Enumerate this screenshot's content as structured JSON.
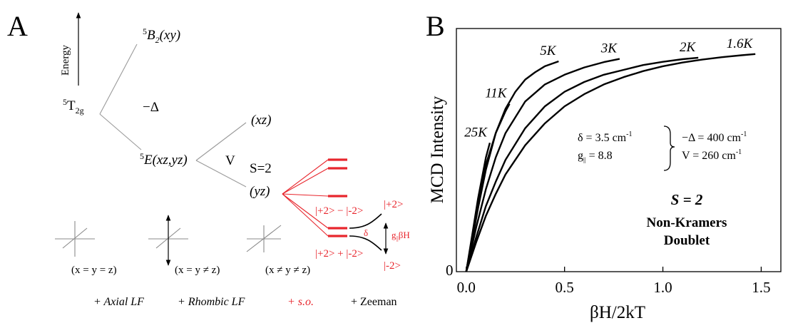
{
  "panel_a": {
    "label": "A",
    "energy_axis_label": "Energy",
    "levels": {
      "t2g": {
        "main": "T",
        "pre": "5",
        "sub": "2g"
      },
      "b2": {
        "pre": "5",
        "main": "B",
        "sub": "2",
        "suffix": "(xy)"
      },
      "e": {
        "pre": "5",
        "main": "E(xz,yz)"
      },
      "xz": "(xz)",
      "yz": "(yz)"
    },
    "neg_delta": "−Δ",
    "v_label": "V",
    "spin_label": "S=2",
    "states": {
      "plus_minus": "|+2> − |-2>",
      "plus_plus": "|+2> + |-2>",
      "plus_two": "|+2>",
      "minus_two": "|-2>",
      "delta": "δ",
      "gbh": {
        "main": "g",
        "sub": "||",
        "rest": "βH"
      }
    },
    "geometries": [
      "(x = y = z)",
      "(x = y ≠ z)",
      "(x ≠ y ≠ z)"
    ],
    "bottom_labels": [
      "+ Axial LF",
      "+ Rhombic LF",
      "+ s.o.",
      "+ Zeeman"
    ],
    "colors": {
      "ink": "#000000",
      "gray": "#9a9a9a",
      "red": "#e8262d"
    }
  },
  "panel_b": {
    "label": "B",
    "params": {
      "delta": "δ = 3.5 cm",
      "g": {
        "main": "g",
        "sub": "||",
        "rest": " = 8.8"
      },
      "neg_delta": "−Δ = 400 cm",
      "v": "V = 260 cm",
      "unit_exp": "-1"
    },
    "spin": "S = 2",
    "doublet_line1": "Non-Kramers",
    "doublet_line2": "Doublet"
  },
  "chart_data": {
    "type": "line",
    "xlabel": "βH/2kT",
    "ylabel": "MCD Intensity",
    "xlim": [
      -0.05,
      1.6
    ],
    "ylim": [
      0,
      1
    ],
    "x_ticks": [
      0.0,
      0.5,
      1.0,
      1.5
    ],
    "x_tick_labels": [
      "0.0",
      "0.5",
      "1.0",
      "1.5"
    ],
    "y_ticks": [
      0
    ],
    "y_tick_labels": [
      "0"
    ],
    "grid": false,
    "series": [
      {
        "name": "1.6K",
        "x": [
          0.0,
          0.05,
          0.1,
          0.15,
          0.2,
          0.3,
          0.4,
          0.5,
          0.6,
          0.7,
          0.8,
          0.9,
          1.0,
          1.1,
          1.2,
          1.3,
          1.4,
          1.47
        ],
        "y": [
          0.0,
          0.12,
          0.23,
          0.32,
          0.4,
          0.52,
          0.61,
          0.68,
          0.73,
          0.77,
          0.8,
          0.825,
          0.845,
          0.86,
          0.872,
          0.882,
          0.89,
          0.895
        ]
      },
      {
        "name": "2K",
        "x": [
          0.0,
          0.05,
          0.1,
          0.15,
          0.2,
          0.3,
          0.4,
          0.5,
          0.6,
          0.7,
          0.8,
          0.9,
          1.0,
          1.1,
          1.18
        ],
        "y": [
          0.0,
          0.14,
          0.27,
          0.37,
          0.46,
          0.59,
          0.68,
          0.74,
          0.78,
          0.81,
          0.83,
          0.85,
          0.863,
          0.874,
          0.88
        ]
      },
      {
        "name": "3K",
        "x": [
          0.0,
          0.05,
          0.1,
          0.15,
          0.2,
          0.3,
          0.4,
          0.5,
          0.6,
          0.7,
          0.78
        ],
        "y": [
          0.0,
          0.18,
          0.34,
          0.47,
          0.57,
          0.7,
          0.77,
          0.81,
          0.84,
          0.862,
          0.875
        ]
      },
      {
        "name": "5K",
        "x": [
          0.0,
          0.03,
          0.06,
          0.1,
          0.15,
          0.2,
          0.25,
          0.3,
          0.35,
          0.4,
          0.47
        ],
        "y": [
          0.0,
          0.13,
          0.26,
          0.42,
          0.57,
          0.67,
          0.74,
          0.79,
          0.82,
          0.845,
          0.865
        ]
      },
      {
        "name": "11K",
        "x": [
          0.0,
          0.03,
          0.06,
          0.1,
          0.15,
          0.2,
          0.22
        ],
        "y": [
          0.0,
          0.14,
          0.28,
          0.44,
          0.57,
          0.66,
          0.69
        ]
      },
      {
        "name": "25K",
        "x": [
          0.0,
          0.03,
          0.06,
          0.1,
          0.12
        ],
        "y": [
          0.0,
          0.15,
          0.3,
          0.47,
          0.53
        ]
      }
    ]
  }
}
